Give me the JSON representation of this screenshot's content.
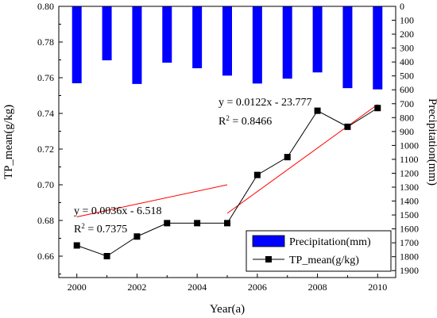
{
  "chart_data": {
    "type": "bar+line",
    "xlabel": "Year(a)",
    "ylabel_left": "TP_mean(g/kg)",
    "ylabel_right": "Precipitation(mm)",
    "x_ticks": [
      "2000",
      "2002",
      "2004",
      "2006",
      "2008",
      "2010"
    ],
    "y_left_ticks": [
      "0.66",
      "0.68",
      "0.70",
      "0.72",
      "0.74",
      "0.76",
      "0.78",
      "0.80"
    ],
    "y_right_ticks": [
      "0",
      "100",
      "200",
      "300",
      "400",
      "500",
      "600",
      "700",
      "800",
      "900",
      "1000",
      "1100",
      "1200",
      "1300",
      "1400",
      "1500",
      "1600",
      "1700",
      "1800",
      "1900"
    ],
    "xlim": [
      1999.4,
      2010.6
    ],
    "ylim_left": [
      0.648,
      0.8
    ],
    "ylim_right": [
      1950,
      0
    ],
    "right_axis_inverted": true,
    "grid": false,
    "legend_placement": "bottom-right",
    "years": [
      2000,
      2001,
      2002,
      2003,
      2004,
      2005,
      2006,
      2007,
      2008,
      2009,
      2010
    ],
    "series": [
      {
        "name": "Precipitation(mm)",
        "kind": "bar",
        "axis": "right",
        "color": "#0000ff",
        "values": [
          553,
          388,
          558,
          405,
          445,
          498,
          555,
          520,
          475,
          588,
          597
        ]
      },
      {
        "name": "TP_mean(g/kg)",
        "kind": "line",
        "axis": "left",
        "color": "#000000",
        "values": [
          0.666,
          0.66,
          0.671,
          0.6785,
          0.6785,
          0.6785,
          0.7055,
          0.7155,
          0.7415,
          0.7325,
          0.743
        ]
      }
    ],
    "trendlines": [
      {
        "x_range": [
          2000,
          2005
        ],
        "slope": 0.0036,
        "intercept": -6.518,
        "equation": "y = 0.0036x - 6.518",
        "r2_label": "R",
        "r2_sup": "2",
        "r2_value": " = 0.7375",
        "color": "#ff0000"
      },
      {
        "x_range": [
          2005,
          2010
        ],
        "slope": 0.0122,
        "intercept": -23.777,
        "equation": "y = 0.0122x - 23.777",
        "r2_label": "R",
        "r2_sup": "2",
        "r2_value": " = 0.8466",
        "color": "#ff0000"
      }
    ]
  }
}
